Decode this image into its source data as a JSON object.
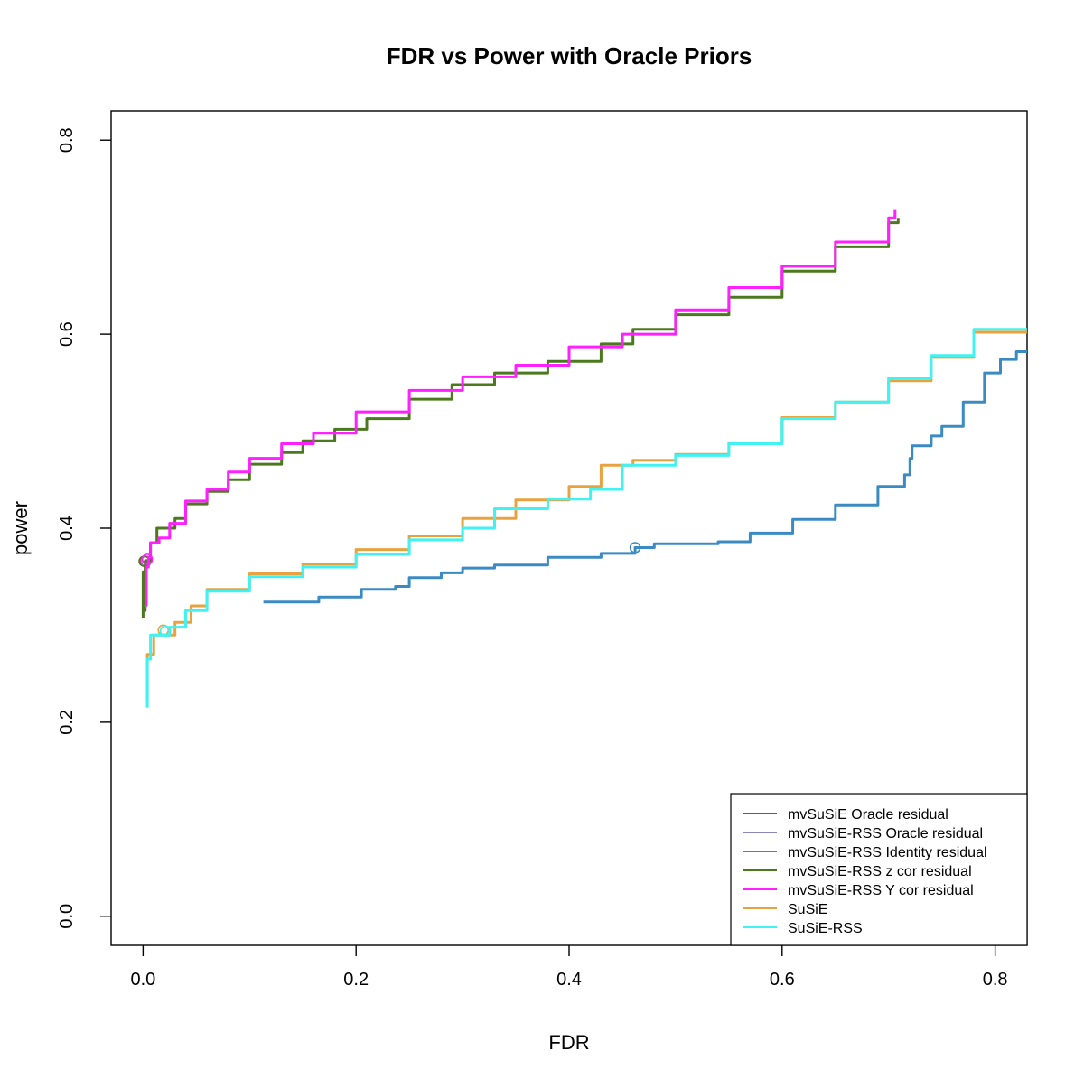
{
  "chart_data": {
    "type": "line",
    "title": "FDR vs Power with Oracle Priors",
    "xlabel": "FDR",
    "ylabel": "power",
    "xlim": [
      -0.03,
      0.83
    ],
    "ylim": [
      -0.03,
      0.83
    ],
    "x_ticks": [
      0.0,
      0.2,
      0.4,
      0.6,
      0.8
    ],
    "x_tick_labels": [
      "0.0",
      "0.2",
      "0.4",
      "0.6",
      "0.8"
    ],
    "y_ticks": [
      0.0,
      0.2,
      0.4,
      0.6,
      0.8
    ],
    "y_tick_labels": [
      "0.0",
      "0.2",
      "0.4",
      "0.6",
      "0.8"
    ],
    "grid": false,
    "legend_position": "bottom-right",
    "series": [
      {
        "name": "mvSuSiE Oracle residual",
        "color": "#b5334f",
        "marker": [
          0.002,
          0.366
        ],
        "points": [
          [
            0.001,
            0.315
          ],
          [
            0.002,
            0.34
          ],
          [
            0.002,
            0.366
          ],
          [
            0.003,
            0.368
          ]
        ]
      },
      {
        "name": "mvSuSiE-RSS Oracle residual",
        "color": "#8b86bf",
        "marker": [
          0.003,
          0.366
        ],
        "points": [
          [
            0.002,
            0.32
          ],
          [
            0.003,
            0.35
          ],
          [
            0.003,
            0.366
          ]
        ]
      },
      {
        "name": "mvSuSiE-RSS Identity residual",
        "color": "#3b8bc2",
        "marker": [
          0.462,
          0.38
        ],
        "points": [
          [
            0.113,
            0.324
          ],
          [
            0.165,
            0.329
          ],
          [
            0.205,
            0.337
          ],
          [
            0.237,
            0.34
          ],
          [
            0.25,
            0.349
          ],
          [
            0.28,
            0.354
          ],
          [
            0.3,
            0.359
          ],
          [
            0.33,
            0.362
          ],
          [
            0.38,
            0.37
          ],
          [
            0.43,
            0.374
          ],
          [
            0.462,
            0.38
          ],
          [
            0.48,
            0.384
          ],
          [
            0.54,
            0.386
          ],
          [
            0.57,
            0.395
          ],
          [
            0.61,
            0.409
          ],
          [
            0.65,
            0.424
          ],
          [
            0.69,
            0.443
          ],
          [
            0.715,
            0.455
          ],
          [
            0.72,
            0.472
          ],
          [
            0.722,
            0.485
          ],
          [
            0.74,
            0.495
          ],
          [
            0.75,
            0.505
          ],
          [
            0.77,
            0.53
          ],
          [
            0.79,
            0.56
          ],
          [
            0.805,
            0.574
          ],
          [
            0.82,
            0.582
          ],
          [
            0.835,
            0.595
          ]
        ]
      },
      {
        "name": "mvSuSiE-RSS z cor residual",
        "color": "#4b7a1e",
        "marker": [
          0.001,
          0.366
        ],
        "points": [
          [
            0.0,
            0.307
          ],
          [
            0.0,
            0.355
          ],
          [
            0.002,
            0.366
          ],
          [
            0.007,
            0.385
          ],
          [
            0.013,
            0.4
          ],
          [
            0.03,
            0.41
          ],
          [
            0.04,
            0.425
          ],
          [
            0.06,
            0.438
          ],
          [
            0.08,
            0.45
          ],
          [
            0.1,
            0.466
          ],
          [
            0.13,
            0.478
          ],
          [
            0.15,
            0.49
          ],
          [
            0.18,
            0.502
          ],
          [
            0.21,
            0.513
          ],
          [
            0.25,
            0.533
          ],
          [
            0.29,
            0.548
          ],
          [
            0.33,
            0.56
          ],
          [
            0.38,
            0.572
          ],
          [
            0.43,
            0.59
          ],
          [
            0.46,
            0.605
          ],
          [
            0.5,
            0.62
          ],
          [
            0.55,
            0.638
          ],
          [
            0.6,
            0.665
          ],
          [
            0.65,
            0.69
          ],
          [
            0.7,
            0.715
          ],
          [
            0.709,
            0.72
          ]
        ]
      },
      {
        "name": "mvSuSiE-RSS Y cor residual",
        "color": "#ff1fff",
        "marker": [
          0.004,
          0.368
        ],
        "points": [
          [
            0.003,
            0.32
          ],
          [
            0.003,
            0.36
          ],
          [
            0.005,
            0.37
          ],
          [
            0.007,
            0.385
          ],
          [
            0.015,
            0.39
          ],
          [
            0.025,
            0.405
          ],
          [
            0.04,
            0.428
          ],
          [
            0.06,
            0.44
          ],
          [
            0.08,
            0.458
          ],
          [
            0.1,
            0.472
          ],
          [
            0.13,
            0.487
          ],
          [
            0.16,
            0.498
          ],
          [
            0.2,
            0.52
          ],
          [
            0.25,
            0.542
          ],
          [
            0.3,
            0.556
          ],
          [
            0.35,
            0.568
          ],
          [
            0.4,
            0.587
          ],
          [
            0.45,
            0.6
          ],
          [
            0.5,
            0.625
          ],
          [
            0.55,
            0.648
          ],
          [
            0.6,
            0.67
          ],
          [
            0.65,
            0.695
          ],
          [
            0.7,
            0.72
          ],
          [
            0.706,
            0.728
          ]
        ]
      },
      {
        "name": "SuSiE",
        "color": "#e9a33e",
        "marker": [
          0.019,
          0.295
        ],
        "points": [
          [
            0.003,
            0.22
          ],
          [
            0.004,
            0.27
          ],
          [
            0.01,
            0.29
          ],
          [
            0.03,
            0.303
          ],
          [
            0.045,
            0.32
          ],
          [
            0.06,
            0.337
          ],
          [
            0.1,
            0.353
          ],
          [
            0.15,
            0.363
          ],
          [
            0.2,
            0.378
          ],
          [
            0.25,
            0.392
          ],
          [
            0.3,
            0.41
          ],
          [
            0.35,
            0.429
          ],
          [
            0.4,
            0.443
          ],
          [
            0.43,
            0.465
          ],
          [
            0.46,
            0.47
          ],
          [
            0.5,
            0.476
          ],
          [
            0.55,
            0.488
          ],
          [
            0.6,
            0.514
          ],
          [
            0.65,
            0.53
          ],
          [
            0.7,
            0.552
          ],
          [
            0.74,
            0.576
          ],
          [
            0.78,
            0.602
          ],
          [
            0.835,
            0.637
          ]
        ]
      },
      {
        "name": "SuSiE-RSS",
        "color": "#40f2f2",
        "marker": [
          0.021,
          0.294
        ],
        "points": [
          [
            0.004,
            0.215
          ],
          [
            0.004,
            0.265
          ],
          [
            0.007,
            0.29
          ],
          [
            0.025,
            0.298
          ],
          [
            0.04,
            0.315
          ],
          [
            0.06,
            0.335
          ],
          [
            0.1,
            0.35
          ],
          [
            0.15,
            0.36
          ],
          [
            0.2,
            0.373
          ],
          [
            0.25,
            0.388
          ],
          [
            0.3,
            0.4
          ],
          [
            0.33,
            0.42
          ],
          [
            0.38,
            0.43
          ],
          [
            0.42,
            0.44
          ],
          [
            0.45,
            0.465
          ],
          [
            0.5,
            0.475
          ],
          [
            0.55,
            0.487
          ],
          [
            0.6,
            0.513
          ],
          [
            0.65,
            0.53
          ],
          [
            0.7,
            0.555
          ],
          [
            0.74,
            0.578
          ],
          [
            0.78,
            0.605
          ],
          [
            0.835,
            0.643
          ]
        ]
      }
    ]
  }
}
